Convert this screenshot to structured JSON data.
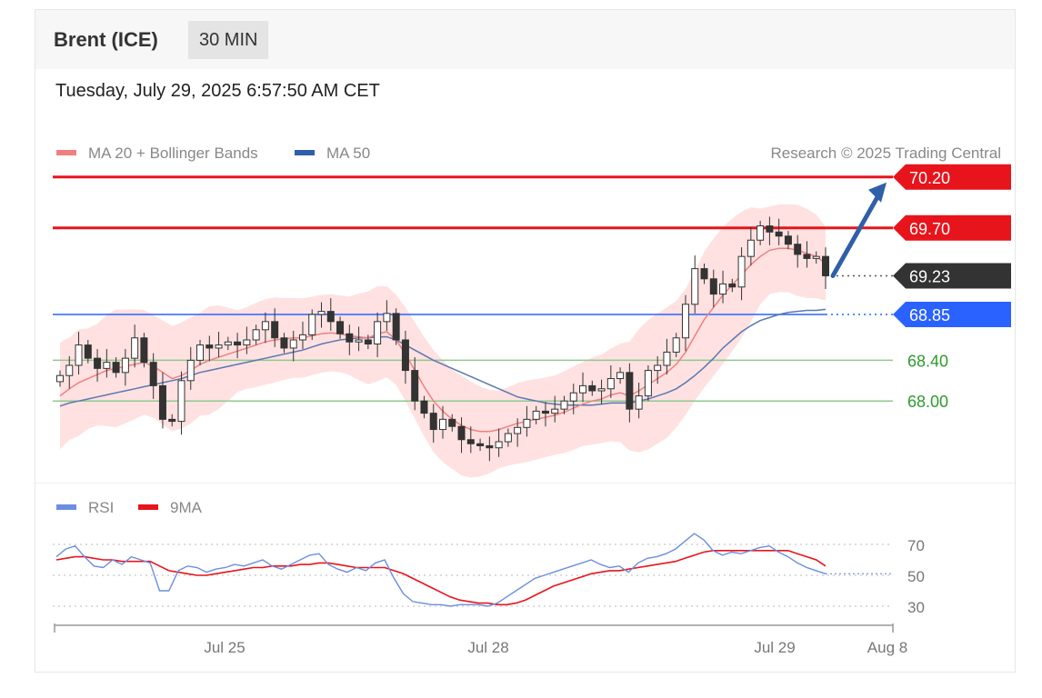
{
  "header": {
    "title": "Brent (ICE)",
    "timeframe": "30 MIN",
    "datetime": "Tuesday, July 29, 2025 6:57:50 AM CET"
  },
  "colors": {
    "resistance": "#e8141b",
    "pivot": "#2962ff",
    "support": "#2e9b2e",
    "current": "#333333",
    "candle_up": "#ffffff",
    "candle_down": "#333333",
    "ma20": "#f08080",
    "bollinger_fill": "#ffd9d9",
    "ma50": "#5a78b0",
    "rsi": "#6b8ee0",
    "rsi_ma": "#e8141b",
    "arrow": "#2f5fa8"
  },
  "chart_data": [
    {
      "type": "candlestick",
      "title": "",
      "copyright": "Research © 2025 Trading Central",
      "legend": [
        {
          "label": "MA 20 + Bollinger Bands",
          "color": "#f08080"
        },
        {
          "label": "MA 50",
          "color": "#2f5fa8"
        }
      ],
      "x_ticks": [
        "Jul 25",
        "Jul 28",
        "Jul 29",
        "Aug 8"
      ],
      "levels": [
        {
          "label": "70.20",
          "value": 70.2,
          "kind": "resistance"
        },
        {
          "label": "69.70",
          "value": 69.7,
          "kind": "resistance"
        },
        {
          "label": "69.23",
          "value": 69.23,
          "kind": "current"
        },
        {
          "label": "68.85",
          "value": 68.85,
          "kind": "pivot"
        },
        {
          "label": "68.40",
          "value": 68.4,
          "kind": "support"
        },
        {
          "label": "68.00",
          "value": 68.0,
          "kind": "support"
        }
      ],
      "target_arrow": {
        "from": 69.23,
        "to": 70.2
      },
      "ylim": [
        67.25,
        70.4
      ],
      "series": [
        {
          "name": "Close",
          "values": [
            68.25,
            68.35,
            68.55,
            68.42,
            68.32,
            68.38,
            68.28,
            68.42,
            68.62,
            68.38,
            68.15,
            67.82,
            67.8,
            68.2,
            68.4,
            68.55,
            68.52,
            68.55,
            68.58,
            68.55,
            68.6,
            68.7,
            68.78,
            68.62,
            68.52,
            68.6,
            68.65,
            68.85,
            68.88,
            68.78,
            68.66,
            68.58,
            68.6,
            68.56,
            68.78,
            68.86,
            68.6,
            68.3,
            68.0,
            67.88,
            67.72,
            67.82,
            67.75,
            67.62,
            67.58,
            67.56,
            67.54,
            67.6,
            67.68,
            67.74,
            67.82,
            67.9,
            67.88,
            67.92,
            68.0,
            68.08,
            68.15,
            68.1,
            68.12,
            68.22,
            68.28,
            67.92,
            68.05,
            68.3,
            68.35,
            68.48,
            68.62,
            68.95,
            69.3,
            69.2,
            69.05,
            69.15,
            69.12,
            69.42,
            69.58,
            69.72,
            69.66,
            69.62,
            69.54,
            69.44,
            69.4,
            69.42,
            69.23
          ]
        },
        {
          "name": "MA 20",
          "values": [
            68.05,
            68.12,
            68.18,
            68.22,
            68.26,
            68.3,
            68.32,
            68.34,
            68.36,
            68.38,
            68.34,
            68.28,
            68.22,
            68.25,
            68.3,
            68.36,
            68.4,
            68.43,
            68.46,
            68.49,
            68.52,
            68.55,
            68.58,
            68.6,
            68.61,
            68.62,
            68.62,
            68.64,
            68.66,
            68.67,
            68.66,
            68.64,
            68.63,
            68.62,
            68.66,
            68.68,
            68.6,
            68.46,
            68.3,
            68.14,
            68.0,
            67.9,
            67.82,
            67.76,
            67.72,
            67.7,
            67.7,
            67.72,
            67.75,
            67.78,
            67.8,
            67.82,
            67.84,
            67.86,
            67.89,
            67.93,
            67.97,
            68.0,
            68.02,
            68.06,
            68.08,
            68.05,
            68.1,
            68.16,
            68.22,
            68.28,
            68.36,
            68.48,
            68.64,
            68.8,
            68.92,
            69.04,
            69.14,
            69.24,
            69.34,
            69.42,
            69.48,
            69.5,
            69.5,
            69.48,
            69.45,
            69.42,
            69.35
          ]
        },
        {
          "name": "MA 50",
          "values": [
            67.95,
            67.98,
            68.0,
            68.02,
            68.04,
            68.06,
            68.08,
            68.1,
            68.12,
            68.14,
            68.16,
            68.18,
            68.2,
            68.22,
            68.25,
            68.28,
            68.3,
            68.32,
            68.34,
            68.36,
            68.38,
            68.4,
            68.42,
            68.44,
            68.46,
            68.48,
            68.5,
            68.53,
            68.56,
            68.58,
            68.6,
            68.61,
            68.62,
            68.62,
            68.63,
            68.63,
            68.6,
            68.55,
            68.5,
            68.45,
            68.4,
            68.36,
            68.32,
            68.28,
            68.24,
            68.2,
            68.16,
            68.12,
            68.08,
            68.04,
            68.02,
            68.0,
            67.98,
            67.97,
            67.96,
            67.96,
            67.96,
            67.96,
            67.97,
            67.98,
            67.98,
            67.98,
            68.0,
            68.02,
            68.05,
            68.08,
            68.12,
            68.18,
            68.25,
            68.33,
            68.42,
            68.52,
            68.6,
            68.68,
            68.74,
            68.79,
            68.82,
            68.85,
            68.87,
            68.88,
            68.89,
            68.89,
            68.9
          ]
        }
      ]
    },
    {
      "type": "line",
      "title": "",
      "legend": [
        {
          "label": "RSI",
          "color": "#6b8ee0"
        },
        {
          "label": "9MA",
          "color": "#e8141b"
        }
      ],
      "y_ticks": [
        70,
        50,
        30
      ],
      "ylim": [
        20,
        85
      ],
      "series": [
        {
          "name": "RSI",
          "values": [
            62,
            67,
            69,
            62,
            56,
            55,
            60,
            57,
            62,
            60,
            58,
            40,
            40,
            53,
            56,
            55,
            52,
            54,
            55,
            57,
            56,
            58,
            60,
            56,
            54,
            57,
            60,
            63,
            64,
            57,
            54,
            52,
            55,
            53,
            58,
            60,
            48,
            38,
            33,
            32,
            31,
            31,
            30,
            31,
            31,
            31,
            30,
            32,
            36,
            40,
            44,
            48,
            50,
            52,
            54,
            56,
            58,
            60,
            57,
            55,
            56,
            52,
            58,
            61,
            62,
            64,
            67,
            72,
            77,
            73,
            66,
            63,
            65,
            64,
            66,
            68,
            69,
            65,
            62,
            58,
            55,
            53,
            51
          ]
        },
        {
          "name": "9MA",
          "values": [
            60,
            61,
            62,
            62,
            61,
            60,
            60,
            59,
            59,
            59,
            59,
            56,
            53,
            52,
            51,
            50,
            50,
            51,
            52,
            53,
            54,
            55,
            55,
            56,
            56,
            56,
            57,
            57,
            58,
            58,
            57,
            56,
            55,
            55,
            55,
            55,
            53,
            51,
            48,
            45,
            42,
            39,
            36,
            34,
            33,
            32,
            32,
            31,
            31,
            32,
            34,
            37,
            40,
            43,
            45,
            47,
            49,
            51,
            52,
            53,
            53,
            54,
            55,
            56,
            57,
            58,
            59,
            61,
            63,
            65,
            66,
            66,
            66,
            66,
            66,
            66,
            66,
            66,
            66,
            64,
            62,
            60,
            56
          ]
        }
      ]
    }
  ]
}
